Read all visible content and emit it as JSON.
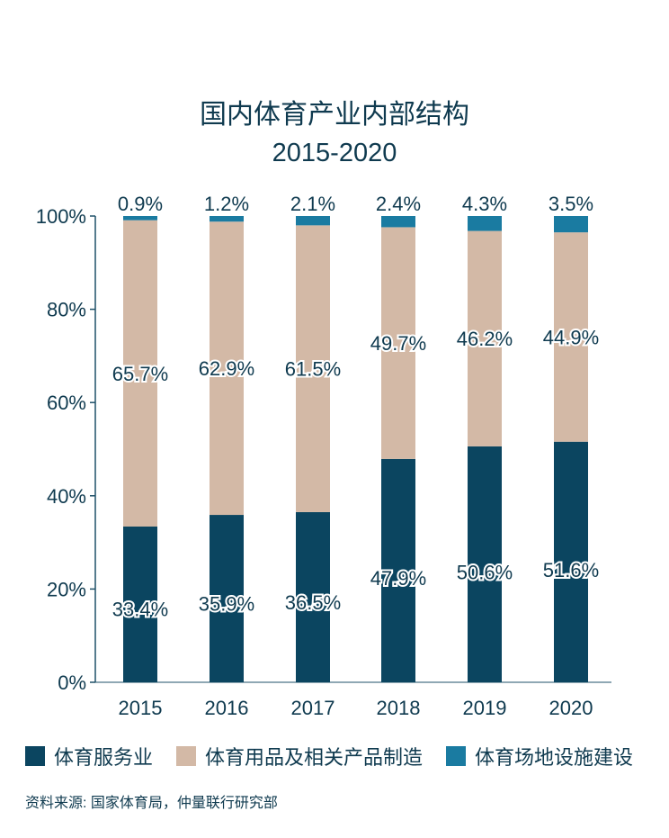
{
  "title_line1": "国内体育产业内部结构",
  "title_line2": "2015-2020",
  "source": "资料来源: 国家体育局，仲量联行研究部",
  "colors": {
    "service": "#0b4560",
    "goods": "#d3b9a6",
    "venue": "#1a7ba1",
    "axis": "#1f5068",
    "text": "#0f3a4f"
  },
  "chart_data": {
    "type": "bar",
    "stacked": true,
    "categories": [
      "2015",
      "2016",
      "2017",
      "2018",
      "2019",
      "2020"
    ],
    "series": [
      {
        "name": "体育服务业",
        "values": [
          33.4,
          35.9,
          36.5,
          47.9,
          50.6,
          51.6
        ],
        "labels": [
          "33.4%",
          "35.9%",
          "36.5%",
          "47.9%",
          "50.6%",
          "51.6%"
        ]
      },
      {
        "name": "体育用品及相关产品制造",
        "values": [
          65.7,
          62.9,
          61.5,
          49.7,
          46.2,
          44.9
        ],
        "labels": [
          "65.7%",
          "62.9%",
          "61.5%",
          "49.7%",
          "46.2%",
          "44.9%"
        ]
      },
      {
        "name": "体育场地设施建设",
        "values": [
          0.9,
          1.2,
          2.1,
          2.4,
          4.3,
          3.5
        ],
        "labels": [
          "0.9%",
          "1.2%",
          "2.1%",
          "2.4%",
          "4.3%",
          "3.5%"
        ]
      }
    ],
    "yticks": [
      "0%",
      "20%",
      "40%",
      "60%",
      "80%",
      "100%"
    ],
    "ylim": [
      0,
      100
    ],
    "grid": false,
    "legend_position": "bottom"
  }
}
